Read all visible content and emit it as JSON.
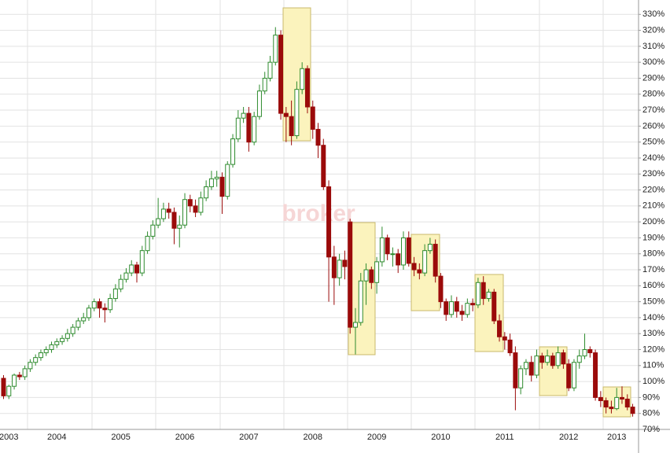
{
  "chart_data": {
    "type": "candlestick",
    "watermark": "broker",
    "categories": [
      null,
      "2003",
      null,
      null,
      null,
      null,
      null,
      null,
      null,
      null,
      "2004",
      null,
      null,
      null,
      null,
      null,
      null,
      null,
      null,
      null,
      null,
      null,
      "2005",
      null,
      null,
      null,
      null,
      null,
      null,
      null,
      null,
      null,
      null,
      null,
      "2006",
      null,
      null,
      null,
      null,
      null,
      null,
      null,
      null,
      null,
      null,
      null,
      "2007",
      null,
      null,
      null,
      null,
      null,
      null,
      null,
      null,
      null,
      null,
      null,
      "2008",
      null,
      null,
      null,
      null,
      null,
      null,
      null,
      null,
      null,
      null,
      null,
      "2009",
      null,
      null,
      null,
      null,
      null,
      null,
      null,
      null,
      null,
      null,
      null,
      "2010",
      null,
      null,
      null,
      null,
      null,
      null,
      null,
      null,
      null,
      null,
      null,
      "2011",
      null,
      null,
      null,
      null,
      null,
      null,
      null,
      null,
      null,
      null,
      null,
      "2012",
      null,
      null,
      null,
      null,
      null,
      null,
      null,
      null,
      "2013",
      null,
      null,
      null
    ],
    "open": [
      102,
      91,
      97,
      104,
      103,
      108,
      112,
      115,
      118,
      120,
      123,
      125,
      127,
      130,
      134,
      138,
      140,
      146,
      150,
      146,
      145,
      152,
      158,
      164,
      168,
      173,
      168,
      182,
      191,
      198,
      202,
      208,
      206,
      196,
      198,
      214,
      210,
      206,
      215,
      222,
      227,
      228,
      216,
      236,
      252,
      265,
      268,
      250,
      266,
      282,
      290,
      300,
      317,
      268,
      266,
      254,
      283,
      296,
      272,
      258,
      248,
      222,
      178,
      165,
      176,
      200,
      134,
      137,
      163,
      170,
      162,
      175,
      190,
      180,
      180,
      173,
      190,
      174,
      170,
      168,
      182,
      186,
      166,
      150,
      142,
      150,
      144,
      142,
      149,
      148,
      162,
      152,
      156,
      138,
      128,
      126,
      118,
      96,
      108,
      112,
      104,
      116,
      112,
      116,
      110,
      118,
      111,
      96,
      112,
      116,
      120,
      118,
      90,
      88,
      84,
      83,
      90,
      89,
      84
    ],
    "high": [
      104,
      98,
      105,
      106,
      110,
      114,
      117,
      120,
      122,
      125,
      127,
      129,
      133,
      136,
      140,
      143,
      148,
      152,
      152,
      149,
      155,
      161,
      167,
      171,
      176,
      175,
      185,
      194,
      201,
      215,
      212,
      212,
      209,
      204,
      218,
      217,
      214,
      219,
      226,
      232,
      232,
      231,
      238,
      255,
      270,
      272,
      272,
      269,
      286,
      294,
      304,
      322,
      320,
      272,
      276,
      288,
      300,
      298,
      276,
      262,
      252,
      226,
      185,
      180,
      182,
      202,
      146,
      168,
      174,
      172,
      178,
      197,
      192,
      184,
      183,
      194,
      194,
      178,
      174,
      186,
      190,
      189,
      168,
      152,
      154,
      153,
      148,
      152,
      152,
      165,
      166,
      158,
      158,
      142,
      131,
      130,
      122,
      110,
      114,
      116,
      120,
      118,
      120,
      118,
      122,
      120,
      114,
      114,
      120,
      130,
      122,
      120,
      94,
      90,
      88,
      96,
      97,
      92,
      86
    ],
    "low": [
      89,
      89,
      95,
      101,
      101,
      106,
      110,
      113,
      116,
      118,
      121,
      123,
      125,
      128,
      132,
      136,
      138,
      144,
      140,
      137,
      143,
      150,
      156,
      162,
      166,
      162,
      166,
      180,
      189,
      196,
      200,
      202,
      186,
      184,
      196,
      206,
      203,
      204,
      213,
      220,
      222,
      205,
      214,
      234,
      250,
      262,
      244,
      248,
      264,
      280,
      288,
      298,
      264,
      250,
      248,
      252,
      280,
      268,
      252,
      240,
      220,
      150,
      148,
      160,
      164,
      130,
      117,
      135,
      148,
      158,
      155,
      172,
      176,
      172,
      168,
      170,
      172,
      166,
      164,
      166,
      180,
      162,
      146,
      138,
      140,
      140,
      138,
      140,
      144,
      146,
      148,
      150,
      136,
      125,
      120,
      116,
      82,
      92,
      104,
      100,
      102,
      108,
      110,
      108,
      108,
      108,
      94,
      94,
      108,
      114,
      115,
      88,
      84,
      80,
      80,
      82,
      86,
      82,
      78
    ],
    "close": [
      91,
      97,
      104,
      103,
      108,
      112,
      115,
      118,
      120,
      123,
      125,
      127,
      130,
      134,
      138,
      140,
      146,
      150,
      146,
      145,
      152,
      158,
      164,
      168,
      173,
      168,
      182,
      191,
      198,
      202,
      208,
      206,
      196,
      198,
      214,
      210,
      206,
      215,
      222,
      227,
      228,
      216,
      236,
      252,
      265,
      268,
      250,
      266,
      282,
      290,
      300,
      317,
      268,
      266,
      254,
      283,
      296,
      272,
      258,
      248,
      222,
      178,
      165,
      176,
      172,
      134,
      137,
      163,
      170,
      162,
      175,
      190,
      180,
      180,
      173,
      190,
      174,
      170,
      168,
      182,
      186,
      166,
      150,
      142,
      150,
      144,
      142,
      149,
      148,
      162,
      152,
      156,
      138,
      128,
      126,
      118,
      96,
      108,
      112,
      104,
      116,
      112,
      116,
      110,
      118,
      111,
      96,
      112,
      116,
      120,
      118,
      90,
      88,
      84,
      83,
      90,
      89,
      84,
      80
    ],
    "up_color": "#2e8b2e",
    "down_color": "#9b0a0a",
    "ylim": [
      70,
      339
    ],
    "yticks": [
      {
        "value": 70,
        "label": "70%"
      },
      {
        "value": 80,
        "label": "80%"
      },
      {
        "value": 90,
        "label": "90%"
      },
      {
        "value": 100,
        "label": "100%"
      },
      {
        "value": 110,
        "label": "110%"
      },
      {
        "value": 120,
        "label": "120%"
      },
      {
        "value": 130,
        "label": "130%"
      },
      {
        "value": 140,
        "label": "140%"
      },
      {
        "value": 150,
        "label": "150%"
      },
      {
        "value": 160,
        "label": "160%"
      },
      {
        "value": 170,
        "label": "170%"
      },
      {
        "value": 180,
        "label": "180%"
      },
      {
        "value": 190,
        "label": "190%"
      },
      {
        "value": 200,
        "label": "200%"
      },
      {
        "value": 210,
        "label": "210%"
      },
      {
        "value": 220,
        "label": "220%"
      },
      {
        "value": 230,
        "label": "230%"
      },
      {
        "value": 240,
        "label": "240%"
      },
      {
        "value": 250,
        "label": "250%"
      },
      {
        "value": 260,
        "label": "260%"
      },
      {
        "value": 270,
        "label": "270%"
      },
      {
        "value": 280,
        "label": "280%"
      },
      {
        "value": 290,
        "label": "290%"
      },
      {
        "value": 300,
        "label": "300%"
      },
      {
        "value": 310,
        "label": "310%"
      },
      {
        "value": 320,
        "label": "320%"
      },
      {
        "value": 330,
        "label": "330%"
      }
    ],
    "grid": true
  }
}
